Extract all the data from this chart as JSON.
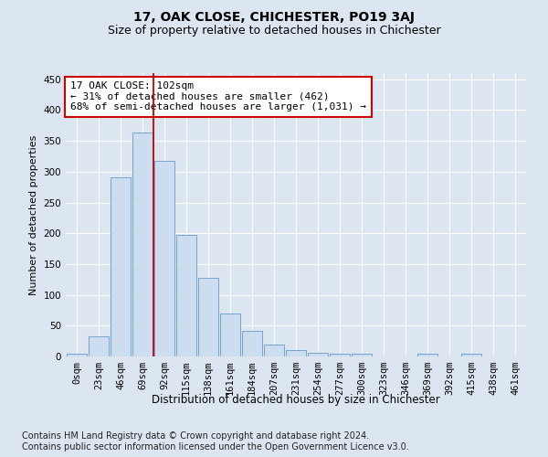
{
  "title": "17, OAK CLOSE, CHICHESTER, PO19 3AJ",
  "subtitle": "Size of property relative to detached houses in Chichester",
  "xlabel": "Distribution of detached houses by size in Chichester",
  "ylabel": "Number of detached properties",
  "bar_labels": [
    "0sqm",
    "23sqm",
    "46sqm",
    "69sqm",
    "92sqm",
    "115sqm",
    "138sqm",
    "161sqm",
    "184sqm",
    "207sqm",
    "231sqm",
    "254sqm",
    "277sqm",
    "300sqm",
    "323sqm",
    "346sqm",
    "369sqm",
    "392sqm",
    "415sqm",
    "438sqm",
    "461sqm"
  ],
  "bar_values": [
    4,
    33,
    291,
    364,
    318,
    198,
    127,
    70,
    41,
    19,
    10,
    6,
    4,
    5,
    0,
    0,
    5,
    0,
    5,
    0,
    0
  ],
  "bar_color": "#ccddf0",
  "bar_edge_color": "#6699cc",
  "background_color": "#dce6f1",
  "plot_bg_color": "#dce6f1",
  "grid_color": "#ffffff",
  "annotation_line1": "17 OAK CLOSE: 102sqm",
  "annotation_line2": "← 31% of detached houses are smaller (462)",
  "annotation_line3": "68% of semi-detached houses are larger (1,031) →",
  "annotation_box_color": "#ffffff",
  "annotation_box_edge": "#cc0000",
  "vline_index": 3.5,
  "vline_color": "#cc0000",
  "ylim": [
    0,
    460
  ],
  "yticks": [
    0,
    50,
    100,
    150,
    200,
    250,
    300,
    350,
    400,
    450
  ],
  "footnote1": "Contains HM Land Registry data © Crown copyright and database right 2024.",
  "footnote2": "Contains public sector information licensed under the Open Government Licence v3.0.",
  "title_fontsize": 10,
  "subtitle_fontsize": 9,
  "xlabel_fontsize": 8.5,
  "ylabel_fontsize": 8,
  "tick_fontsize": 7.5,
  "annotation_fontsize": 8,
  "footnote_fontsize": 7
}
